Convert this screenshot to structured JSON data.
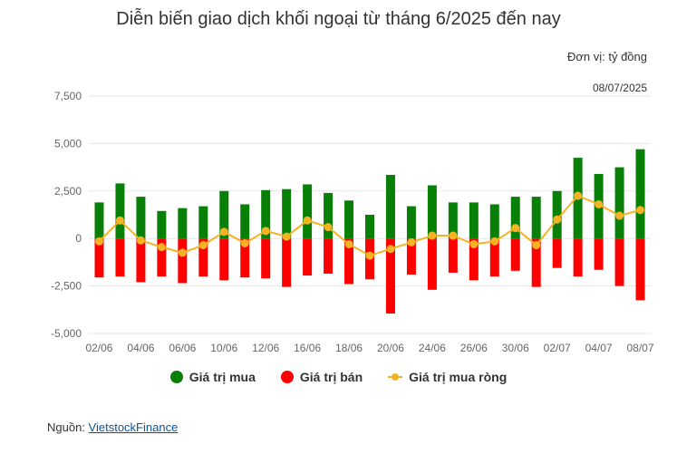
{
  "header": {
    "title": "Diễn biến giao dịch khối ngoại từ tháng 6/2025 đến nay",
    "unit": "Đơn vị: tỷ đồng",
    "date": "08/07/2025"
  },
  "legend": {
    "buy": "Giá trị mua",
    "sell": "Giá trị bán",
    "net": "Giá trị mua ròng"
  },
  "source": {
    "prefix": "Nguồn: ",
    "link": "VietstockFinance"
  },
  "colors": {
    "buy": "#088008",
    "sell": "#ff0000",
    "net": "#f5b323",
    "grid": "#e6e6e6",
    "text": "#666666"
  },
  "chart_data": {
    "type": "bar",
    "categories": [
      "02/06",
      "03/06",
      "04/06",
      "05/06",
      "06/06",
      "09/06",
      "10/06",
      "11/06",
      "12/06",
      "13/06",
      "16/06",
      "17/06",
      "18/06",
      "19/06",
      "20/06",
      "23/06",
      "24/06",
      "25/06",
      "26/06",
      "27/06",
      "30/06",
      "01/07",
      "02/07",
      "03/07",
      "04/07",
      "07/07",
      "08/07"
    ],
    "tick_labels": [
      "02/06",
      "",
      "04/06",
      "",
      "06/06",
      "",
      "10/06",
      "",
      "12/06",
      "",
      "16/06",
      "",
      "18/06",
      "",
      "20/06",
      "",
      "24/06",
      "",
      "26/06",
      "",
      "30/06",
      "",
      "02/07",
      "",
      "04/07",
      "",
      "08/07"
    ],
    "y_ticks": [
      7500,
      5000,
      2500,
      0,
      -2500,
      -5000
    ],
    "y_tick_labels": [
      "7,500",
      "5,000",
      "2,500",
      "0",
      "-2,500",
      "-5,000"
    ],
    "ylim": [
      -5000,
      7500
    ],
    "series": [
      {
        "name": "Giá trị mua",
        "type": "bar",
        "values": [
          1900,
          2900,
          2200,
          1450,
          1600,
          1700,
          2500,
          1800,
          2550,
          2600,
          2850,
          2400,
          2000,
          1250,
          3350,
          1700,
          2800,
          1900,
          1900,
          1800,
          2200,
          2200,
          2500,
          4250,
          3400,
          3750,
          4700
        ]
      },
      {
        "name": "Giá trị bán",
        "type": "bar",
        "values": [
          -2050,
          -2000,
          -2300,
          -2000,
          -2350,
          -2000,
          -2200,
          -2050,
          -2100,
          -2550,
          -1950,
          -1850,
          -2400,
          -2150,
          -3950,
          -1900,
          -2700,
          -1800,
          -2200,
          -2000,
          -1700,
          -2550,
          -1550,
          -2000,
          -1650,
          -2500,
          -3250
        ]
      },
      {
        "name": "Giá trị mua ròng",
        "type": "line",
        "values": [
          -150,
          950,
          -100,
          -450,
          -750,
          -350,
          350,
          -250,
          400,
          100,
          950,
          600,
          -300,
          -900,
          -550,
          -200,
          150,
          150,
          -300,
          -150,
          550,
          -350,
          1000,
          2250,
          1800,
          1200,
          1500
        ]
      }
    ],
    "xlabel": "",
    "ylabel": "",
    "grid": true,
    "legend_position": "bottom"
  }
}
